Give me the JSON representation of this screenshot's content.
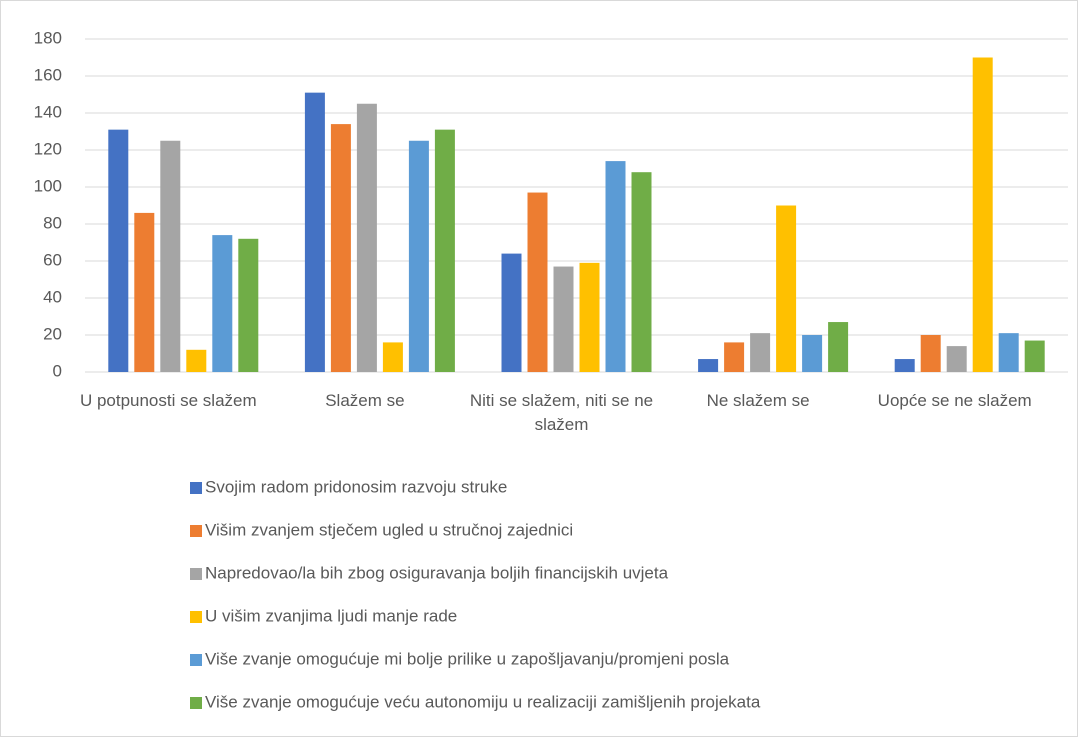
{
  "chart_data": {
    "type": "bar",
    "categories": [
      "U potpunosti se slažem",
      "Slažem se",
      "Niti se slažem, niti se ne slažem",
      "Ne slažem se",
      "Uopće se ne slažem"
    ],
    "series": [
      {
        "name": "Svojim radom pridonosim razvoju struke",
        "color": "#4472c4",
        "values": [
          131,
          151,
          64,
          7,
          7
        ]
      },
      {
        "name": "Višim zvanjem stječem ugled u stručnoj zajednici",
        "color": "#ed7d31",
        "values": [
          86,
          134,
          97,
          16,
          20
        ]
      },
      {
        "name": "Napredovao/la bih zbog osiguravanja boljih financijskih uvjeta",
        "color": "#a5a5a5",
        "values": [
          125,
          145,
          57,
          21,
          14
        ]
      },
      {
        "name": "U višim zvanjima ljudi manje rade",
        "color": "#ffc000",
        "values": [
          12,
          16,
          59,
          90,
          170
        ]
      },
      {
        "name": "Više zvanje omogućuje mi bolje prilike u zapošljavanju/promjeni posla",
        "color": "#5b9bd5",
        "values": [
          74,
          125,
          114,
          20,
          21
        ]
      },
      {
        "name": "Više zvanje omogućuje veću autonomiju u realizaciji zamišljenih projekata",
        "color": "#70ad47",
        "values": [
          72,
          131,
          108,
          27,
          17
        ]
      }
    ],
    "ylim": [
      0,
      180
    ],
    "yticks": [
      0,
      20,
      40,
      60,
      80,
      100,
      120,
      140,
      160,
      180
    ],
    "grid": true,
    "legend": "bottom"
  }
}
